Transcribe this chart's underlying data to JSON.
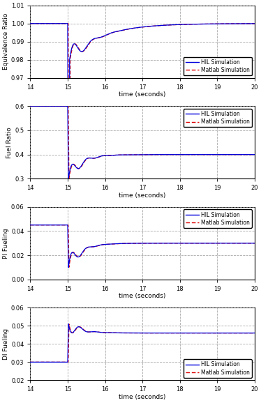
{
  "xlim": [
    14,
    20
  ],
  "xticks": [
    14,
    15,
    16,
    17,
    18,
    19,
    20
  ],
  "xlabel": "time (seconds)",
  "hil_color": "#0000dd",
  "matlab_color": "#dd0000",
  "background": "#ffffff",
  "grid_color": "#999999",
  "subplots": [
    {
      "ylabel": "Equivalence Ratio",
      "ylim": [
        0.97,
        1.01
      ],
      "yticks": [
        0.97,
        0.98,
        0.99,
        1.0,
        1.01
      ],
      "legend_loc": "lower right",
      "show_legend": true
    },
    {
      "ylabel": "Fuel Ratio",
      "ylim": [
        0.3,
        0.6
      ],
      "yticks": [
        0.3,
        0.4,
        0.5,
        0.6
      ],
      "legend_loc": "upper right",
      "show_legend": true
    },
    {
      "ylabel": "PI Fueling",
      "ylim": [
        0,
        0.06
      ],
      "yticks": [
        0,
        0.02,
        0.04,
        0.06
      ],
      "legend_loc": "upper right",
      "show_legend": true
    },
    {
      "ylabel": "DI Fueling",
      "ylim": [
        0.02,
        0.06
      ],
      "yticks": [
        0.02,
        0.03,
        0.04,
        0.05,
        0.06
      ],
      "legend_loc": "lower right",
      "show_legend": true
    }
  ]
}
